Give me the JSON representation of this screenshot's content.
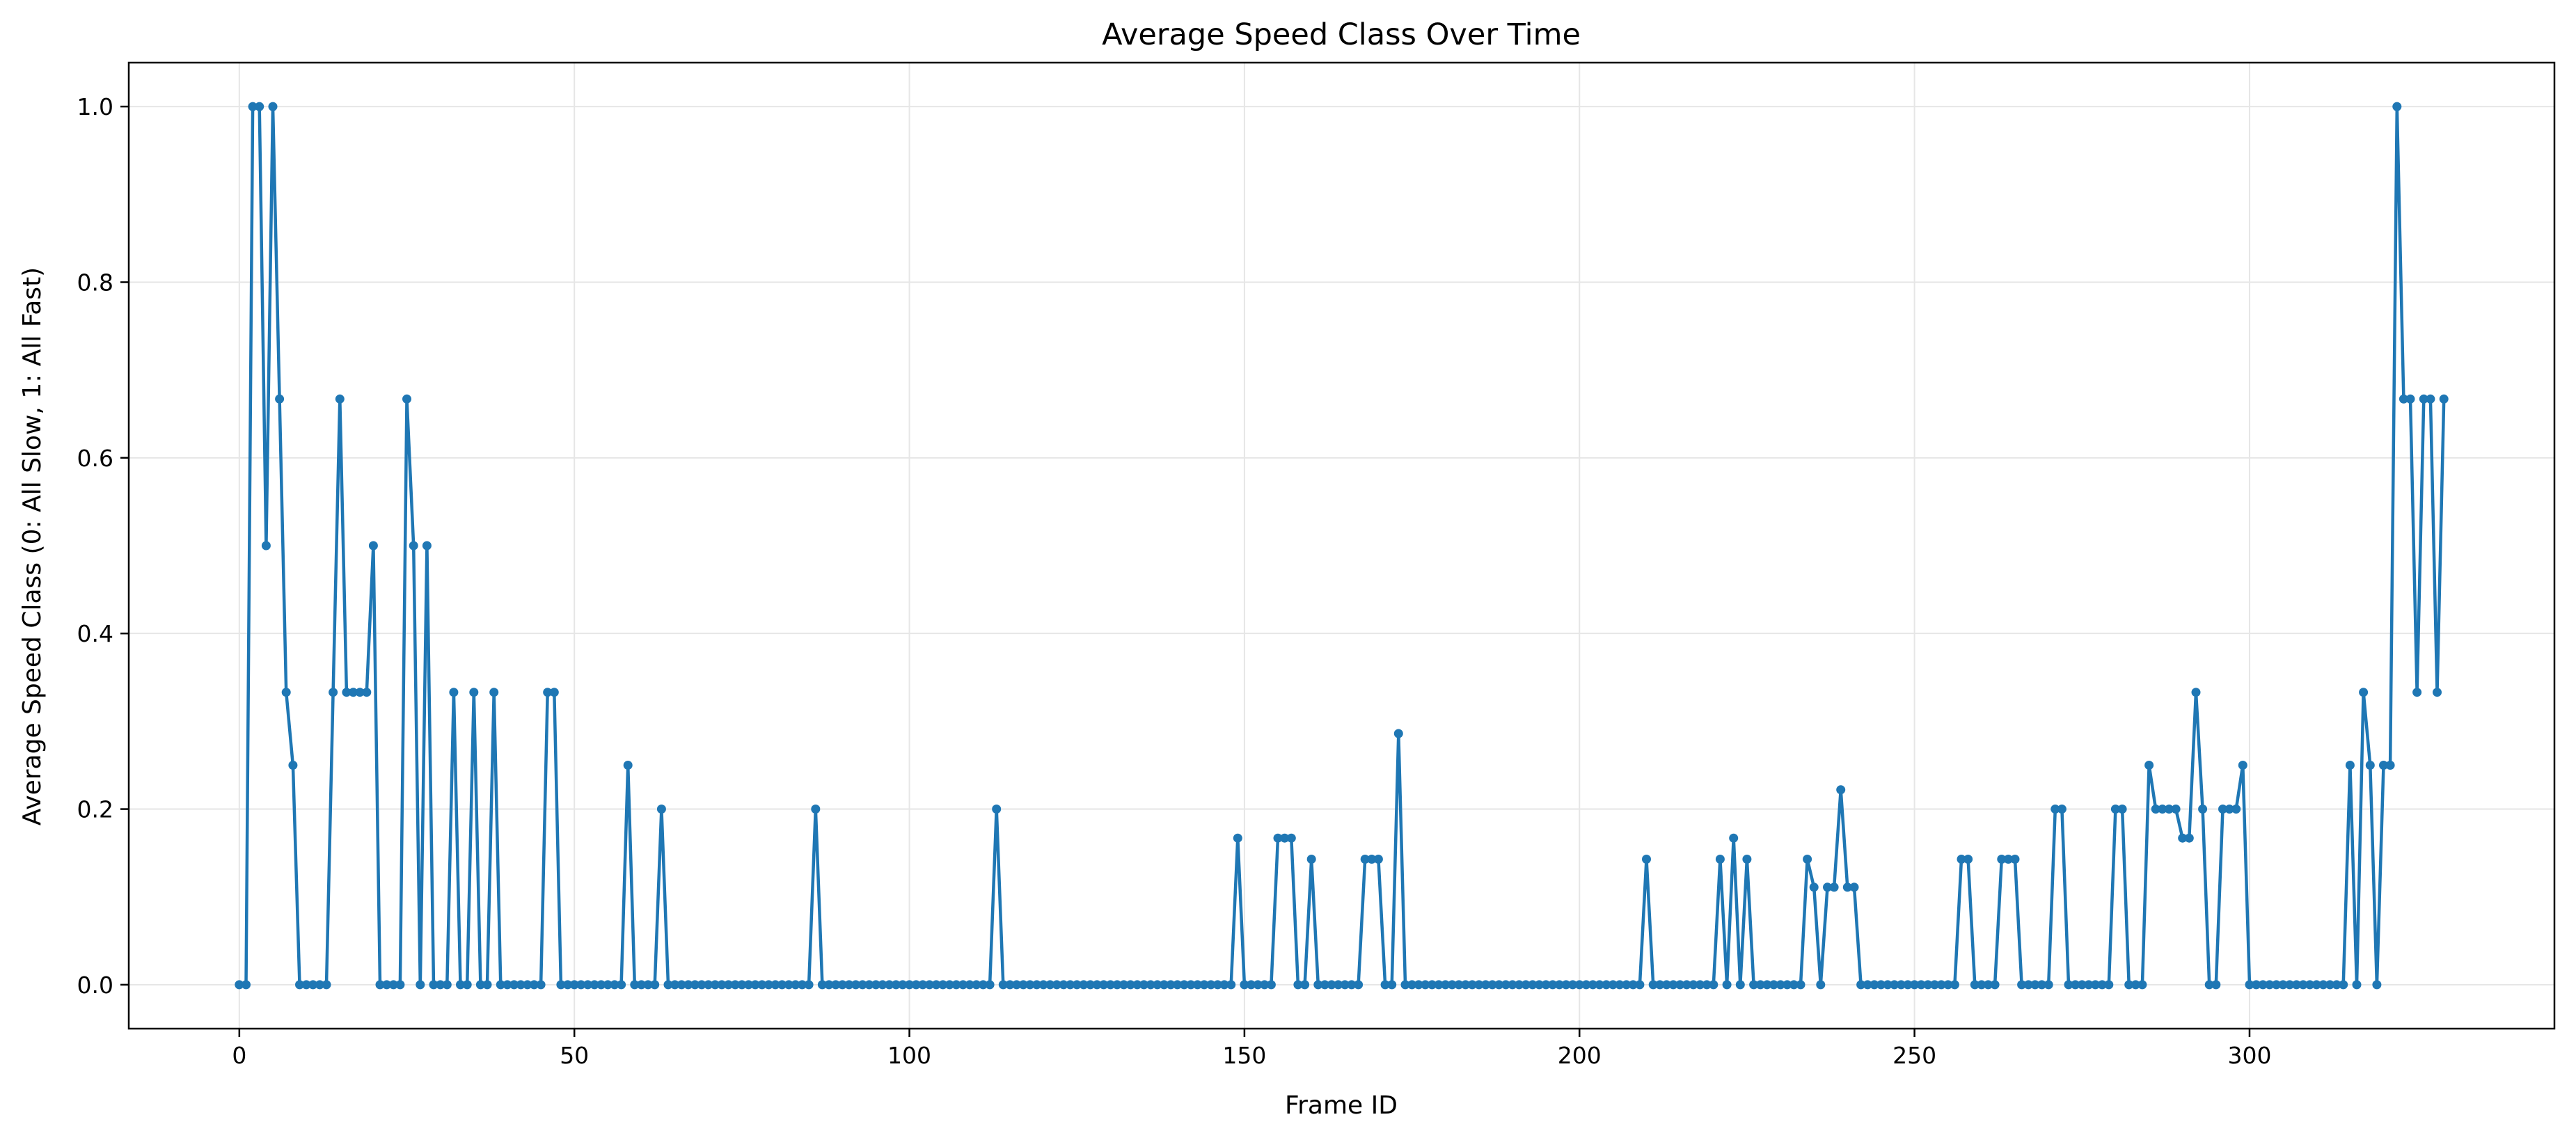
{
  "chart_data": {
    "type": "line",
    "title": "Average Speed Class Over Time",
    "xlabel": "Frame ID",
    "ylabel": "Average Speed Class (0: All Slow, 1: All Fast)",
    "xlim": [
      -16.5,
      345.5
    ],
    "ylim": [
      -0.05,
      1.05
    ],
    "xticks": [
      0,
      50,
      100,
      150,
      200,
      250,
      300
    ],
    "yticks": [
      0.0,
      0.2,
      0.4,
      0.6,
      0.8,
      1.0
    ],
    "xtick_labels": [
      "0",
      "50",
      "100",
      "150",
      "200",
      "250",
      "300"
    ],
    "ytick_labels": [
      "0.0",
      "0.2",
      "0.4",
      "0.6",
      "0.8",
      "1.0"
    ],
    "grid": true,
    "legend": "none",
    "color": "#1f77b4",
    "marker": "circle",
    "series": [
      {
        "x_start": 0,
        "x_step": 1,
        "values": [
          0,
          0,
          1.0,
          1.0,
          0.5,
          1.0,
          0.667,
          0.333,
          0.25,
          0,
          0,
          0,
          0,
          0,
          0.333,
          0.667,
          0.333,
          0.333,
          0.333,
          0.333,
          0.5,
          0,
          0,
          0,
          0,
          0.667,
          0.5,
          0,
          0.5,
          0,
          0,
          0,
          0.333,
          0,
          0,
          0.333,
          0,
          0,
          0.333,
          0,
          0,
          0,
          0,
          0,
          0,
          0,
          0.333,
          0.333,
          0,
          0,
          0,
          0,
          0,
          0,
          0,
          0,
          0,
          0,
          0.25,
          0,
          0,
          0,
          0,
          0.2,
          0,
          0,
          0,
          0,
          0,
          0,
          0,
          0,
          0,
          0,
          0,
          0,
          0,
          0,
          0,
          0,
          0,
          0,
          0,
          0,
          0,
          0,
          0.2,
          0,
          0,
          0,
          0,
          0,
          0,
          0,
          0,
          0,
          0,
          0,
          0,
          0,
          0,
          0,
          0,
          0,
          0,
          0,
          0,
          0,
          0,
          0,
          0,
          0,
          0,
          0.2,
          0,
          0,
          0,
          0,
          0,
          0,
          0,
          0,
          0,
          0,
          0,
          0,
          0,
          0,
          0,
          0,
          0,
          0,
          0,
          0,
          0,
          0,
          0,
          0,
          0,
          0,
          0,
          0,
          0,
          0,
          0,
          0,
          0,
          0,
          0,
          0.167,
          0,
          0,
          0,
          0,
          0,
          0.167,
          0.167,
          0.167,
          0,
          0,
          0.143,
          0,
          0,
          0,
          0,
          0,
          0,
          0,
          0.143,
          0.143,
          0.143,
          0,
          0,
          0.286,
          0,
          0,
          0,
          0,
          0,
          0,
          0,
          0,
          0,
          0,
          0,
          0,
          0,
          0,
          0,
          0,
          0,
          0,
          0,
          0,
          0,
          0,
          0,
          0,
          0,
          0,
          0,
          0,
          0,
          0,
          0,
          0,
          0,
          0,
          0,
          0,
          0.143,
          0,
          0,
          0,
          0,
          0,
          0,
          0,
          0,
          0,
          0,
          0.143,
          0,
          0.167,
          0,
          0.143,
          0,
          0,
          0,
          0,
          0,
          0,
          0,
          0,
          0.143,
          0.111,
          0,
          0.111,
          0.111,
          0.222,
          0.111,
          0.111,
          0,
          0,
          0,
          0,
          0,
          0,
          0,
          0,
          0,
          0,
          0,
          0,
          0,
          0,
          0,
          0.143,
          0.143,
          0,
          0,
          0,
          0,
          0.143,
          0.143,
          0.143,
          0,
          0,
          0,
          0,
          0,
          0.2,
          0.2,
          0,
          0,
          0,
          0,
          0,
          0,
          0,
          0.2,
          0.2,
          0,
          0,
          0,
          0.25,
          0.2,
          0.2,
          0.2,
          0.2,
          0.167,
          0.167,
          0.333,
          0.2,
          0,
          0,
          0.2,
          0.2,
          0.2,
          0.25,
          0,
          0,
          0,
          0,
          0,
          0,
          0,
          0,
          0,
          0,
          0,
          0,
          0,
          0,
          0,
          0.25,
          0,
          0.333,
          0.25,
          0,
          0.25,
          0.25,
          1.0,
          0.667,
          0.667,
          0.333,
          0.667,
          0.667,
          0.333,
          0.667
        ]
      }
    ]
  }
}
